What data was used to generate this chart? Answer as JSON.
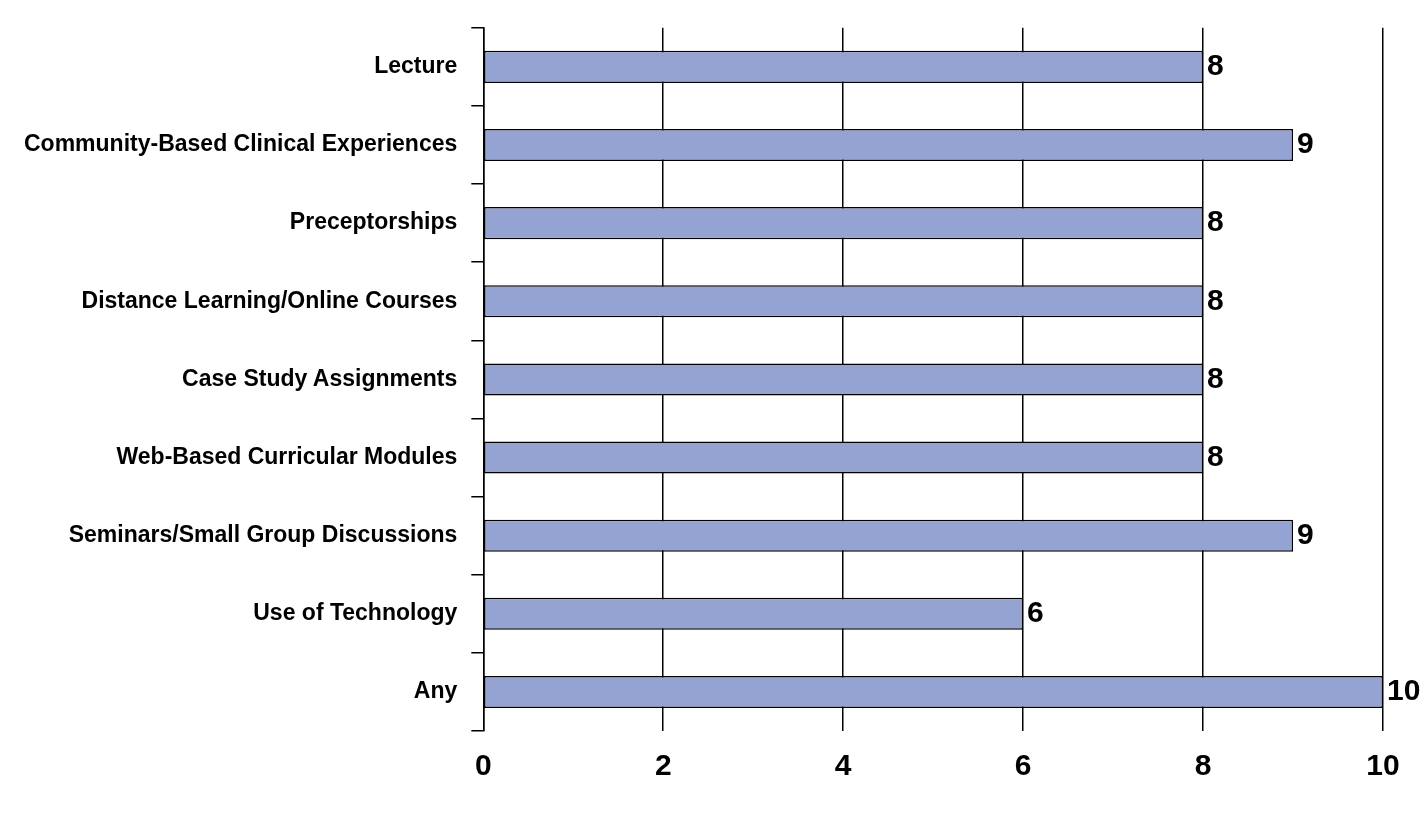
{
  "chart_data": {
    "type": "bar",
    "orientation": "horizontal",
    "categories": [
      "Lecture",
      "Community-Based Clinical Experiences",
      "Preceptorships",
      "Distance Learning/Online Courses",
      "Case Study Assignments",
      "Web-Based Curricular Modules",
      "Seminars/Small Group Discussions",
      "Use of Technology",
      "Any"
    ],
    "values": [
      8,
      9,
      8,
      8,
      8,
      8,
      9,
      6,
      10
    ],
    "color": "#95a3d2",
    "xlim": [
      0,
      10
    ],
    "xticks": [
      0,
      2,
      4,
      6,
      8,
      10
    ],
    "grid": "x",
    "legend": false,
    "data_labels": true
  }
}
